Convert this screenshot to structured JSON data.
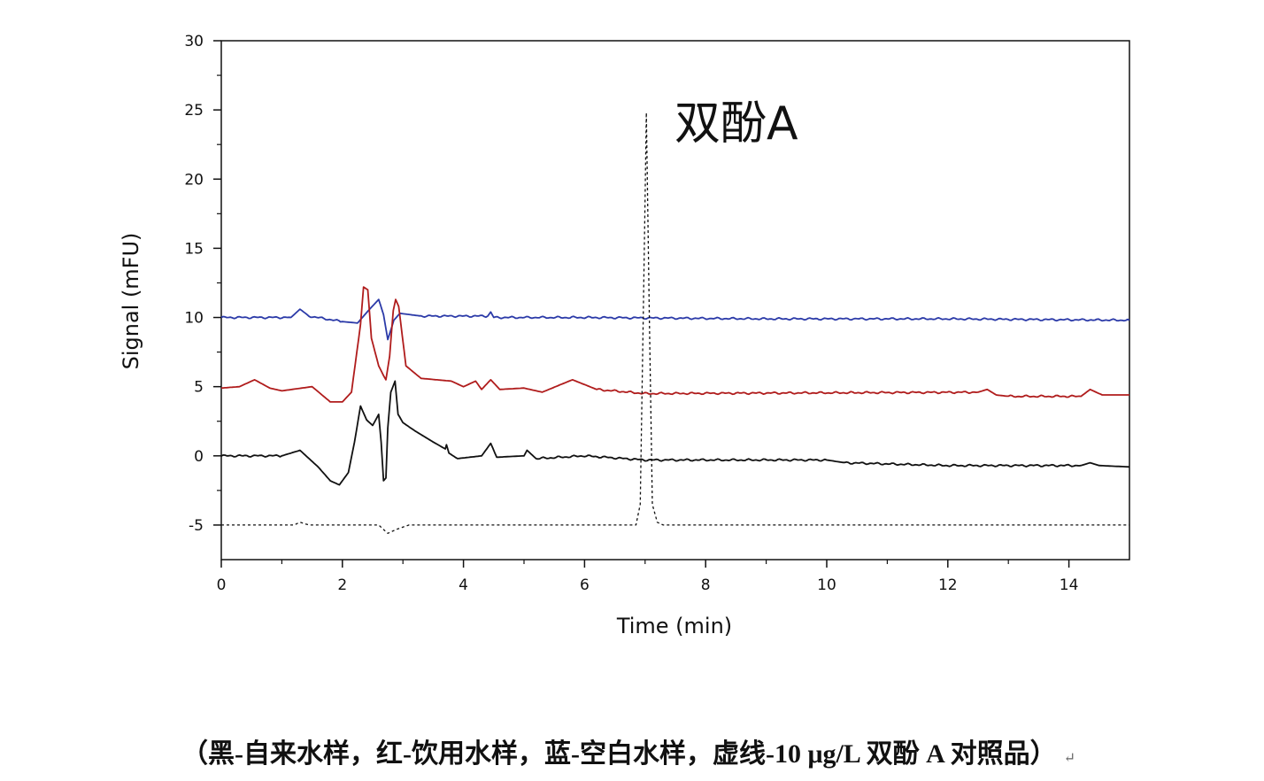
{
  "chart_data": {
    "type": "line",
    "xlabel": "Time (min)",
    "ylabel": "Signal (mFU)",
    "xlim": [
      0,
      15
    ],
    "ylim": [
      -7.5,
      30
    ],
    "xticks": [
      0,
      2,
      4,
      6,
      8,
      10,
      12,
      14
    ],
    "yticks": [
      -5,
      0,
      5,
      10,
      15,
      20,
      25,
      30
    ],
    "grid": false,
    "annotation": "双酚A",
    "caption": "（黑-自来水样，红-饮用水样，蓝-空白水样，虚线-10 μg/L 双酚 A 对照品）",
    "return_mark": "↵",
    "series": [
      {
        "name": "蓝-空白水样",
        "color": "#2b3aa8",
        "dash": false,
        "x": [
          0,
          1.15,
          1.3,
          1.45,
          2.0,
          2.25,
          2.45,
          2.6,
          2.68,
          2.75,
          2.85,
          2.95,
          3.3,
          4.4,
          4.45,
          4.5,
          6.0,
          9.0,
          12.0,
          15.0
        ],
        "y": [
          10,
          10,
          10.6,
          10.1,
          9.7,
          9.6,
          10.6,
          11.3,
          10.2,
          8.4,
          9.8,
          10.3,
          10.1,
          10.1,
          10.4,
          10.0,
          10.0,
          9.9,
          9.9,
          9.8
        ]
      },
      {
        "name": "红-饮用水样",
        "color": "#b01c1c",
        "dash": false,
        "x": [
          0,
          0.3,
          0.55,
          0.8,
          1.0,
          1.5,
          1.8,
          2.0,
          2.15,
          2.3,
          2.35,
          2.42,
          2.48,
          2.6,
          2.68,
          2.72,
          2.78,
          2.84,
          2.88,
          2.93,
          3.05,
          3.3,
          3.8,
          4.0,
          4.2,
          4.3,
          4.45,
          4.6,
          5.0,
          5.3,
          5.8,
          6.2,
          7.0,
          12.5,
          12.65,
          12.8,
          13.0,
          14.2,
          14.35,
          14.55,
          15.0
        ],
        "y": [
          4.9,
          5.0,
          5.5,
          4.9,
          4.7,
          5.0,
          3.9,
          3.9,
          4.6,
          9.5,
          12.2,
          12.0,
          8.5,
          6.5,
          5.8,
          5.5,
          7.2,
          10.5,
          11.3,
          10.8,
          6.5,
          5.6,
          5.4,
          5.0,
          5.4,
          4.8,
          5.5,
          4.8,
          4.9,
          4.6,
          5.5,
          4.8,
          4.5,
          4.6,
          4.8,
          4.4,
          4.3,
          4.3,
          4.8,
          4.4,
          4.4
        ]
      },
      {
        "name": "黑-自来水样",
        "color": "#111111",
        "dash": false,
        "x": [
          0,
          1.0,
          1.3,
          1.6,
          1.8,
          1.95,
          2.1,
          2.2,
          2.3,
          2.4,
          2.5,
          2.6,
          2.64,
          2.68,
          2.72,
          2.75,
          2.8,
          2.87,
          2.92,
          3.0,
          3.2,
          3.5,
          3.7,
          3.72,
          3.76,
          3.9,
          4.3,
          4.45,
          4.55,
          5.0,
          5.05,
          5.2,
          6.0,
          7.0,
          10.0,
          10.3,
          12.0,
          14.2,
          14.35,
          14.5,
          15.0
        ],
        "y": [
          0,
          0,
          0.4,
          -0.8,
          -1.8,
          -2.1,
          -1.2,
          1.0,
          3.6,
          2.6,
          2.2,
          3.0,
          1.0,
          -1.8,
          -1.6,
          2.0,
          4.6,
          5.4,
          3.0,
          2.4,
          1.8,
          1.0,
          0.5,
          0.8,
          0.2,
          -0.2,
          0,
          0.9,
          -0.1,
          0,
          0.4,
          -0.2,
          0,
          -0.3,
          -0.3,
          -0.5,
          -0.7,
          -0.7,
          -0.5,
          -0.7,
          -0.8
        ]
      },
      {
        "name": "虚线-10 μg/L 双酚 A 对照品",
        "color": "#111111",
        "dash": true,
        "x": [
          0,
          1.2,
          1.3,
          1.45,
          2.6,
          2.75,
          2.9,
          3.1,
          6.85,
          6.92,
          6.97,
          7.02,
          7.07,
          7.12,
          7.2,
          7.3,
          15.0
        ],
        "y": [
          -5,
          -5,
          -4.8,
          -5,
          -5,
          -5.6,
          -5.3,
          -5.0,
          -5.0,
          -3.5,
          10,
          24.8,
          10,
          -3.5,
          -4.8,
          -5.0,
          -5.0
        ]
      }
    ]
  }
}
